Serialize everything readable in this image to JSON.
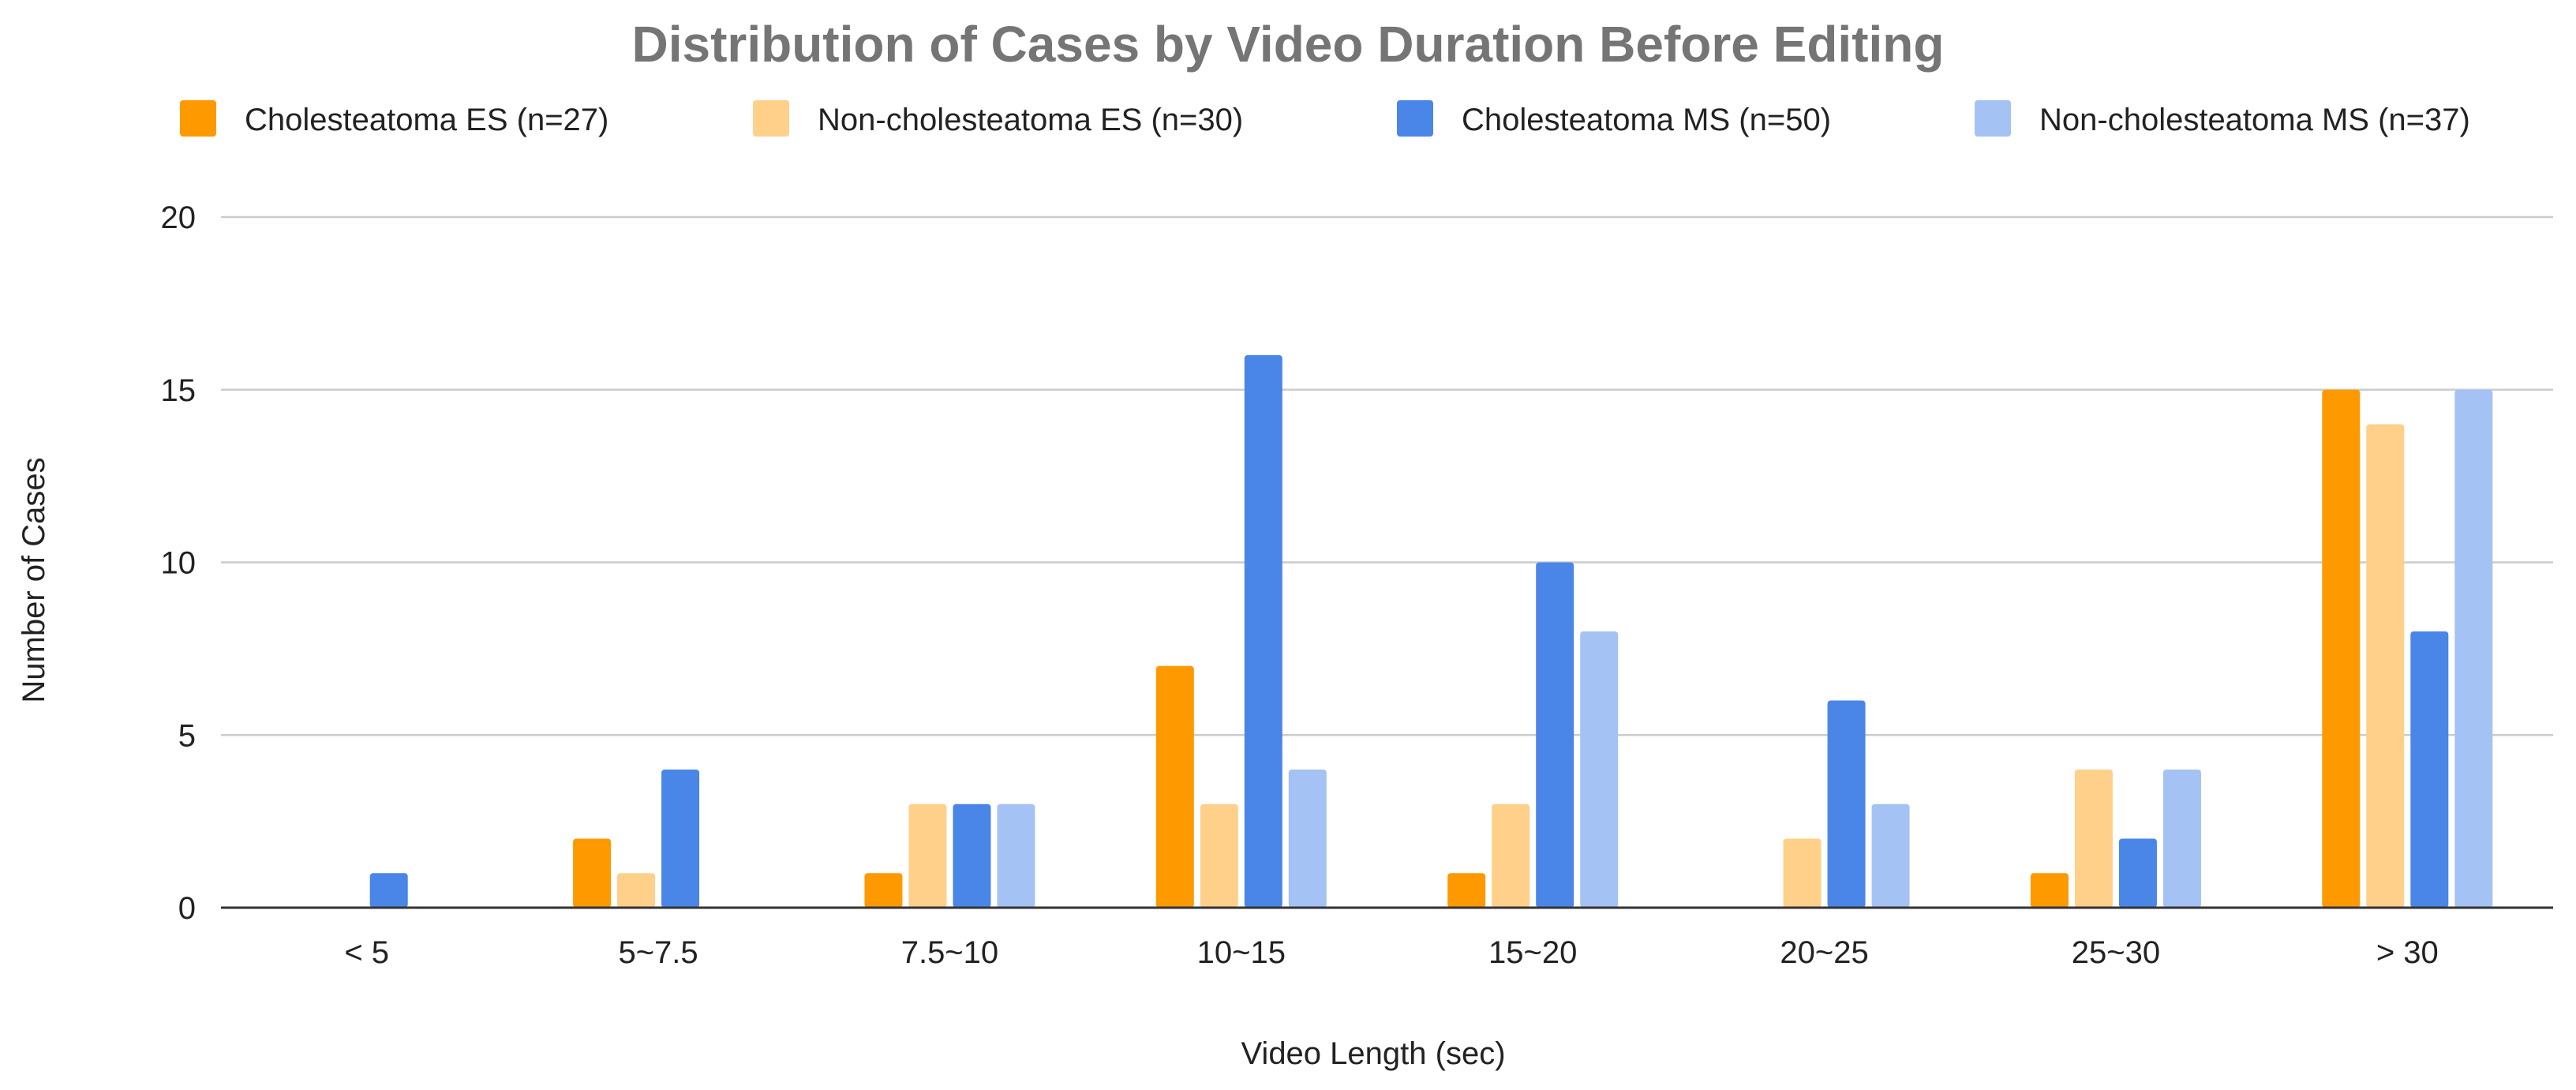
{
  "chart_data": {
    "type": "bar",
    "title": "Distribution of Cases by Video Duration Before Editing",
    "xlabel": "Video Length (sec)",
    "ylabel": "Number of Cases",
    "ylim": [
      0,
      20
    ],
    "yticks": [
      0,
      5,
      10,
      15,
      20
    ],
    "grid": true,
    "legend_position": "top",
    "categories": [
      "< 5",
      "5~7.5",
      "7.5~10",
      "10~15",
      "15~20",
      "20~25",
      "25~30",
      "> 30"
    ],
    "series": [
      {
        "name": "Cholesteatoma ES (n=27)",
        "color": "#ff9900",
        "values": [
          0,
          2,
          1,
          7,
          1,
          0,
          1,
          15
        ]
      },
      {
        "name": "Non-cholesteatoma ES (n=30)",
        "color": "#ffd08a",
        "values": [
          0,
          1,
          3,
          3,
          3,
          2,
          4,
          14
        ]
      },
      {
        "name": "Cholesteatoma MS (n=50)",
        "color": "#4a86e8",
        "values": [
          1,
          4,
          3,
          16,
          10,
          6,
          2,
          8
        ]
      },
      {
        "name": "Non-cholesteatoma MS (n=37)",
        "color": "#a4c2f4",
        "values": [
          0,
          0,
          3,
          4,
          8,
          3,
          4,
          15
        ]
      }
    ]
  }
}
